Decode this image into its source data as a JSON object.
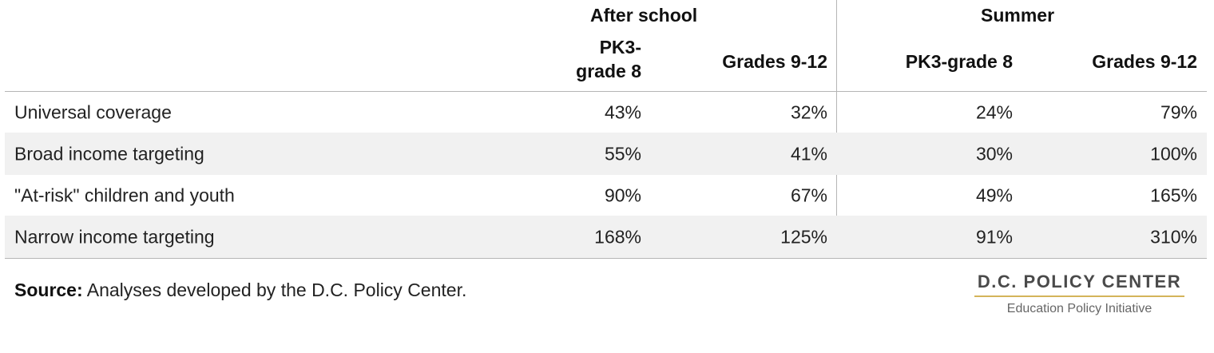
{
  "groups": {
    "after_school": "After school",
    "summer": "Summer"
  },
  "columns": [
    {
      "line1": "PK3-",
      "line2": "grade 8"
    },
    {
      "label": "Grades 9-12"
    },
    {
      "label": "PK3-grade 8"
    },
    {
      "label": "Grades 9-12"
    }
  ],
  "rows": [
    {
      "label": "Universal coverage",
      "values": [
        "43%",
        "32%",
        "24%",
        "79%"
      ]
    },
    {
      "label": "Broad income targeting",
      "values": [
        "55%",
        "41%",
        "30%",
        "100%"
      ]
    },
    {
      "label": "\"At-risk\" children and youth",
      "values": [
        "90%",
        "67%",
        "49%",
        "165%"
      ]
    },
    {
      "label": "Narrow income targeting",
      "values": [
        "168%",
        "125%",
        "91%",
        "310%"
      ]
    }
  ],
  "source": {
    "prefix": "Source:",
    "text": " Analyses developed by the D.C. Policy Center."
  },
  "logo": {
    "title": "D.C. POLICY CENTER",
    "subtitle": "Education Policy Initiative",
    "rule_color": "#d4b45a"
  }
}
